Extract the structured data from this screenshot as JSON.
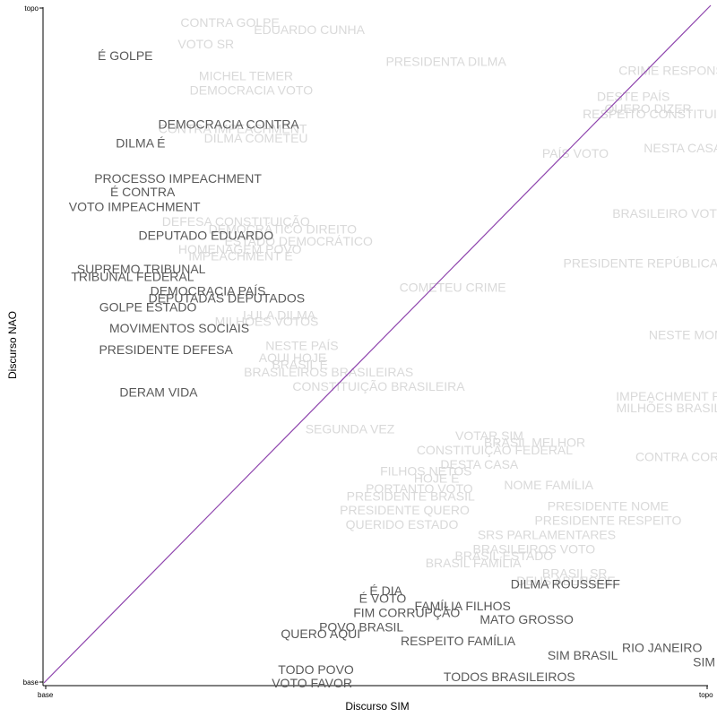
{
  "chart_data": {
    "type": "scatter",
    "title": "",
    "xlabel": "Discurso SIM",
    "ylabel": "Discurso NAO",
    "x_ticks": [
      "base",
      "topo"
    ],
    "y_ticks": [
      "base",
      "topo"
    ],
    "xlim": [
      0,
      1
    ],
    "ylim": [
      0,
      1
    ],
    "grid": false,
    "diagonal": {
      "from": [
        0,
        0
      ],
      "to": [
        1,
        1
      ],
      "color": "#8e44ad"
    },
    "colors": {
      "highlighted": "#595959",
      "faded": "#d9d9d9"
    },
    "points": [
      {
        "label": "É GOLPE",
        "x": 0.122,
        "y": 0.926,
        "highlighted": true
      },
      {
        "label": "DEMOCRACIA CONTRA",
        "x": 0.277,
        "y": 0.825,
        "highlighted": true
      },
      {
        "label": "DILMA É",
        "x": 0.145,
        "y": 0.797,
        "highlighted": true
      },
      {
        "label": "PROCESSO IMPEACHMENT",
        "x": 0.201,
        "y": 0.745,
        "highlighted": true
      },
      {
        "label": "É CONTRA",
        "x": 0.148,
        "y": 0.725,
        "highlighted": true
      },
      {
        "label": "VOTO IMPEACHMENT",
        "x": 0.136,
        "y": 0.703,
        "highlighted": true
      },
      {
        "label": "DEPUTADO EDUARDO",
        "x": 0.243,
        "y": 0.661,
        "highlighted": true
      },
      {
        "label": "SUPREMO TRIBUNAL",
        "x": 0.146,
        "y": 0.611,
        "highlighted": true
      },
      {
        "label": "TRIBUNAL FEDERAL",
        "x": 0.133,
        "y": 0.6,
        "highlighted": true
      },
      {
        "label": "DEMOCRACIA PAÍS",
        "x": 0.246,
        "y": 0.579,
        "highlighted": true
      },
      {
        "label": "DEPUTADAS DEPUTADOS",
        "x": 0.274,
        "y": 0.568,
        "highlighted": true
      },
      {
        "label": "GOLPE ESTADO",
        "x": 0.156,
        "y": 0.555,
        "highlighted": true
      },
      {
        "label": "MOVIMENTOS SOCIAIS",
        "x": 0.203,
        "y": 0.524,
        "highlighted": true
      },
      {
        "label": "PRESIDENTE DEFESA",
        "x": 0.183,
        "y": 0.492,
        "highlighted": true
      },
      {
        "label": "DERAM VIDA",
        "x": 0.172,
        "y": 0.429,
        "highlighted": true
      },
      {
        "label": "É DIA",
        "x": 0.513,
        "y": 0.136,
        "highlighted": true
      },
      {
        "label": "É VOTO",
        "x": 0.508,
        "y": 0.125,
        "highlighted": true
      },
      {
        "label": "FAMÍLIA FILHOS",
        "x": 0.628,
        "y": 0.114,
        "highlighted": true
      },
      {
        "label": "FIM CORRUPÇÃO",
        "x": 0.544,
        "y": 0.104,
        "highlighted": true
      },
      {
        "label": "MATO GROSSO",
        "x": 0.724,
        "y": 0.094,
        "highlighted": true
      },
      {
        "label": "POVO BRASIL",
        "x": 0.476,
        "y": 0.083,
        "highlighted": true
      },
      {
        "label": "QUERO AQUI",
        "x": 0.415,
        "y": 0.073,
        "highlighted": true
      },
      {
        "label": "RESPEITO FAMÍLIA",
        "x": 0.621,
        "y": 0.062,
        "highlighted": true
      },
      {
        "label": "DILMA ROUSSEFF",
        "x": 0.782,
        "y": 0.146,
        "highlighted": true
      },
      {
        "label": "SIM BRASIL",
        "x": 0.808,
        "y": 0.041,
        "highlighted": true
      },
      {
        "label": "RIO JANEIRO",
        "x": 0.927,
        "y": 0.052,
        "highlighted": true
      },
      {
        "label": "SIM",
        "x": 0.99,
        "y": 0.031,
        "highlighted": true
      },
      {
        "label": "TODO POVO",
        "x": 0.408,
        "y": 0.02,
        "highlighted": true
      },
      {
        "label": "TODOS BRASILEIROS",
        "x": 0.698,
        "y": 0.009,
        "highlighted": true
      },
      {
        "label": "VOTO FAVOR",
        "x": 0.402,
        "y": 0.0,
        "highlighted": true
      },
      {
        "label": "CONTRA GOLPE",
        "x": 0.279,
        "y": 0.975,
        "highlighted": false
      },
      {
        "label": "EDUARDO CUNHA",
        "x": 0.398,
        "y": 0.964,
        "highlighted": false
      },
      {
        "label": "VOTO SR",
        "x": 0.243,
        "y": 0.943,
        "highlighted": false
      },
      {
        "label": "PRESIDENTA DILMA",
        "x": 0.603,
        "y": 0.917,
        "highlighted": false
      },
      {
        "label": "MICHEL TEMER",
        "x": 0.303,
        "y": 0.896,
        "highlighted": false
      },
      {
        "label": "DEMOCRACIA VOTO",
        "x": 0.311,
        "y": 0.875,
        "highlighted": false
      },
      {
        "label": "CONTRA IMPEACHMENT",
        "x": 0.283,
        "y": 0.818,
        "highlighted": false
      },
      {
        "label": "DILMA COMETEU",
        "x": 0.318,
        "y": 0.804,
        "highlighted": false
      },
      {
        "label": "DEFESA CONSTITUIÇÃO",
        "x": 0.288,
        "y": 0.681,
        "highlighted": false
      },
      {
        "label": "DEMOCRÁTICO DIREITO",
        "x": 0.358,
        "y": 0.67,
        "highlighted": false
      },
      {
        "label": "ESTADO DEMOCRÁTICO",
        "x": 0.382,
        "y": 0.652,
        "highlighted": false
      },
      {
        "label": "HOMENAGEM POVO",
        "x": 0.294,
        "y": 0.64,
        "highlighted": false
      },
      {
        "label": "IMPEACHMENT É",
        "x": 0.295,
        "y": 0.63,
        "highlighted": false
      },
      {
        "label": "COMETEU CRIME",
        "x": 0.613,
        "y": 0.584,
        "highlighted": false
      },
      {
        "label": "LULA DILMA",
        "x": 0.353,
        "y": 0.543,
        "highlighted": false
      },
      {
        "label": "MILHÕES VOTOS",
        "x": 0.334,
        "y": 0.534,
        "highlighted": false
      },
      {
        "label": "NESTE PAÍS",
        "x": 0.387,
        "y": 0.498,
        "highlighted": false
      },
      {
        "label": "AQUI HOJE",
        "x": 0.373,
        "y": 0.48,
        "highlighted": false
      },
      {
        "label": "BRASIL É",
        "x": 0.384,
        "y": 0.47,
        "highlighted": false
      },
      {
        "label": "BRASILEIROS BRASILEIRAS",
        "x": 0.427,
        "y": 0.459,
        "highlighted": false
      },
      {
        "label": "CONSTITUIÇÃO BRASILEIRA",
        "x": 0.502,
        "y": 0.438,
        "highlighted": false
      },
      {
        "label": "SEGUNDA VEZ",
        "x": 0.459,
        "y": 0.375,
        "highlighted": false
      },
      {
        "label": "VOTAR SIM",
        "x": 0.668,
        "y": 0.365,
        "highlighted": false
      },
      {
        "label": "BRASIL MELHOR",
        "x": 0.736,
        "y": 0.355,
        "highlighted": false
      },
      {
        "label": "CONSTITUIÇÃO FEDERAL",
        "x": 0.676,
        "y": 0.344,
        "highlighted": false
      },
      {
        "label": "DESTA CASA",
        "x": 0.653,
        "y": 0.323,
        "highlighted": false
      },
      {
        "label": "FILHOS NETOS",
        "x": 0.573,
        "y": 0.313,
        "highlighted": false
      },
      {
        "label": "HOJE É",
        "x": 0.589,
        "y": 0.302,
        "highlighted": false
      },
      {
        "label": "PORTANTO VOTO",
        "x": 0.563,
        "y": 0.287,
        "highlighted": false
      },
      {
        "label": "NOME FAMÍLIA",
        "x": 0.757,
        "y": 0.292,
        "highlighted": false
      },
      {
        "label": "PRESIDENTE BRASIL",
        "x": 0.55,
        "y": 0.276,
        "highlighted": false
      },
      {
        "label": "PRESIDENTE NOME",
        "x": 0.846,
        "y": 0.261,
        "highlighted": false
      },
      {
        "label": "PRESIDENTE QUERO",
        "x": 0.541,
        "y": 0.255,
        "highlighted": false
      },
      {
        "label": "PRESIDENTE RESPEITO",
        "x": 0.846,
        "y": 0.24,
        "highlighted": false
      },
      {
        "label": "QUERIDO ESTADO",
        "x": 0.537,
        "y": 0.234,
        "highlighted": false
      },
      {
        "label": "SRS PARLAMENTARES",
        "x": 0.754,
        "y": 0.219,
        "highlighted": false
      },
      {
        "label": "BRASILEIROS VOTO",
        "x": 0.735,
        "y": 0.198,
        "highlighted": false
      },
      {
        "label": "BRASIL ESTADO",
        "x": 0.69,
        "y": 0.188,
        "highlighted": false
      },
      {
        "label": "BRASIL FAMÍLIA",
        "x": 0.644,
        "y": 0.177,
        "highlighted": false
      },
      {
        "label": "BRASIL SR",
        "x": 0.796,
        "y": 0.162,
        "highlighted": false
      },
      {
        "label": "DEUS ABENÇOE",
        "x": 0.783,
        "y": 0.151,
        "highlighted": false
      },
      {
        "label": "PAÍS VOTO",
        "x": 0.797,
        "y": 0.782,
        "highlighted": false
      },
      {
        "label": "NESTA CASA",
        "x": 0.958,
        "y": 0.79,
        "highlighted": false
      },
      {
        "label": "PRESIDENTE REPÚBLICA",
        "x": 0.895,
        "y": 0.62,
        "highlighted": false
      },
      {
        "label": "BRASILEIRO VOTO",
        "x": 0.938,
        "y": 0.693,
        "highlighted": false
      },
      {
        "label": "DESTE PAÍS",
        "x": 0.884,
        "y": 0.866,
        "highlighted": false
      },
      {
        "label": "QUERO DIZER",
        "x": 0.906,
        "y": 0.848,
        "highlighted": false
      },
      {
        "label": "RESPEITO CONSTITUIÇÃO",
        "x": 0.929,
        "y": 0.84,
        "highlighted": false
      },
      {
        "label": "MILHÕES BRASILEIROS",
        "x": 0.966,
        "y": 0.406,
        "highlighted": false
      },
      {
        "label": "CONTRA CORRUPÇÃO",
        "x": 0.99,
        "y": 0.334,
        "highlighted": false
      },
      {
        "label": "CRIME RESPONSABILIDADE",
        "x": 0.99,
        "y": 0.904,
        "highlighted": false
      },
      {
        "label": "NESTE MOMENTO",
        "x": 0.99,
        "y": 0.514,
        "highlighted": false
      },
      {
        "label": "IMPEACHMENT PRESIDENTE",
        "x": 0.99,
        "y": 0.423,
        "highlighted": false
      }
    ]
  }
}
